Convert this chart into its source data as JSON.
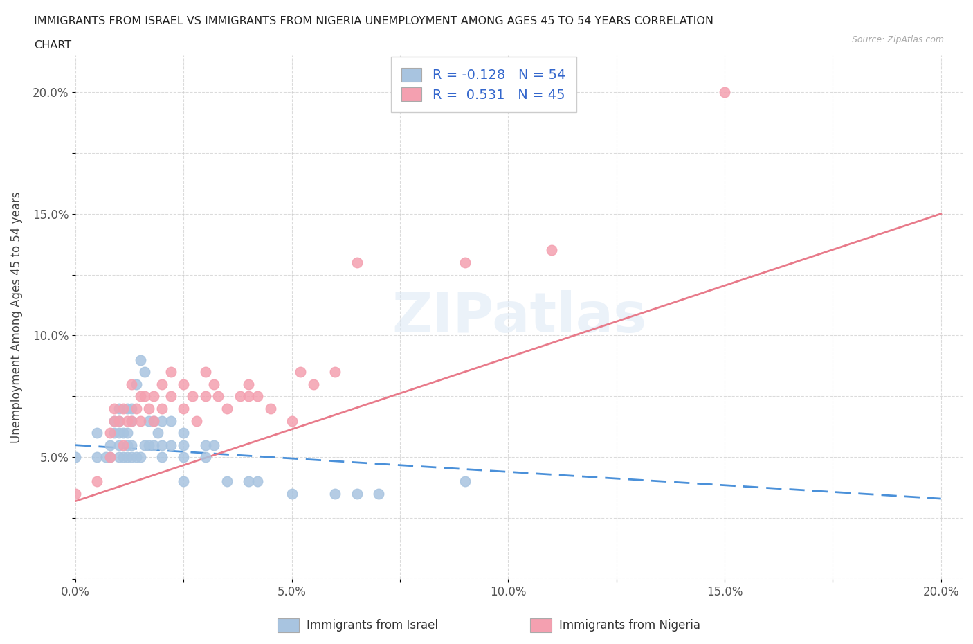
{
  "title_line1": "IMMIGRANTS FROM ISRAEL VS IMMIGRANTS FROM NIGERIA UNEMPLOYMENT AMONG AGES 45 TO 54 YEARS CORRELATION",
  "title_line2": "CHART",
  "source": "Source: ZipAtlas.com",
  "ylabel": "Unemployment Among Ages 45 to 54 years",
  "israel_R": -0.128,
  "israel_N": 54,
  "nigeria_R": 0.531,
  "nigeria_N": 45,
  "israel_color": "#a8c4e0",
  "nigeria_color": "#f4a0b0",
  "israel_line_color": "#4a90d9",
  "nigeria_line_color": "#e87a8a",
  "background_color": "#ffffff",
  "israel_x": [
    0.0,
    0.005,
    0.005,
    0.007,
    0.008,
    0.008,
    0.009,
    0.009,
    0.01,
    0.01,
    0.01,
    0.01,
    0.01,
    0.011,
    0.011,
    0.012,
    0.012,
    0.012,
    0.012,
    0.013,
    0.013,
    0.013,
    0.013,
    0.014,
    0.014,
    0.015,
    0.015,
    0.016,
    0.016,
    0.017,
    0.017,
    0.018,
    0.018,
    0.019,
    0.02,
    0.02,
    0.02,
    0.022,
    0.022,
    0.025,
    0.025,
    0.025,
    0.025,
    0.03,
    0.03,
    0.032,
    0.035,
    0.04,
    0.042,
    0.05,
    0.06,
    0.065,
    0.07,
    0.09
  ],
  "israel_y": [
    0.05,
    0.05,
    0.06,
    0.05,
    0.05,
    0.055,
    0.06,
    0.065,
    0.05,
    0.055,
    0.06,
    0.065,
    0.07,
    0.05,
    0.06,
    0.05,
    0.055,
    0.06,
    0.07,
    0.05,
    0.055,
    0.065,
    0.07,
    0.05,
    0.08,
    0.05,
    0.09,
    0.055,
    0.085,
    0.055,
    0.065,
    0.055,
    0.065,
    0.06,
    0.055,
    0.065,
    0.05,
    0.055,
    0.065,
    0.05,
    0.055,
    0.06,
    0.04,
    0.05,
    0.055,
    0.055,
    0.04,
    0.04,
    0.04,
    0.035,
    0.035,
    0.035,
    0.035,
    0.04
  ],
  "nigeria_x": [
    0.0,
    0.005,
    0.008,
    0.008,
    0.009,
    0.009,
    0.01,
    0.011,
    0.011,
    0.012,
    0.013,
    0.013,
    0.014,
    0.015,
    0.015,
    0.016,
    0.017,
    0.018,
    0.018,
    0.02,
    0.02,
    0.022,
    0.022,
    0.025,
    0.025,
    0.027,
    0.028,
    0.03,
    0.03,
    0.032,
    0.033,
    0.035,
    0.038,
    0.04,
    0.04,
    0.042,
    0.045,
    0.05,
    0.052,
    0.055,
    0.06,
    0.065,
    0.09,
    0.11,
    0.15
  ],
  "nigeria_y": [
    0.035,
    0.04,
    0.05,
    0.06,
    0.065,
    0.07,
    0.065,
    0.055,
    0.07,
    0.065,
    0.065,
    0.08,
    0.07,
    0.065,
    0.075,
    0.075,
    0.07,
    0.065,
    0.075,
    0.07,
    0.08,
    0.075,
    0.085,
    0.07,
    0.08,
    0.075,
    0.065,
    0.075,
    0.085,
    0.08,
    0.075,
    0.07,
    0.075,
    0.075,
    0.08,
    0.075,
    0.07,
    0.065,
    0.085,
    0.08,
    0.085,
    0.13,
    0.13,
    0.135,
    0.2
  ],
  "xticks": [
    0.0,
    0.025,
    0.05,
    0.075,
    0.1,
    0.125,
    0.15,
    0.175,
    0.2
  ],
  "xtick_labels": [
    "0.0%",
    "",
    "5.0%",
    "",
    "10.0%",
    "",
    "15.0%",
    "",
    "20.0%"
  ],
  "yticks": [
    0.0,
    0.025,
    0.05,
    0.075,
    0.1,
    0.125,
    0.15,
    0.175,
    0.2
  ],
  "ytick_labels": [
    "",
    "",
    "5.0%",
    "",
    "10.0%",
    "",
    "15.0%",
    "",
    "20.0%"
  ],
  "israel_line_x": [
    0.0,
    0.2
  ],
  "israel_line_y": [
    0.055,
    0.033
  ],
  "nigeria_line_x": [
    0.0,
    0.2
  ],
  "nigeria_line_y": [
    0.032,
    0.15
  ]
}
